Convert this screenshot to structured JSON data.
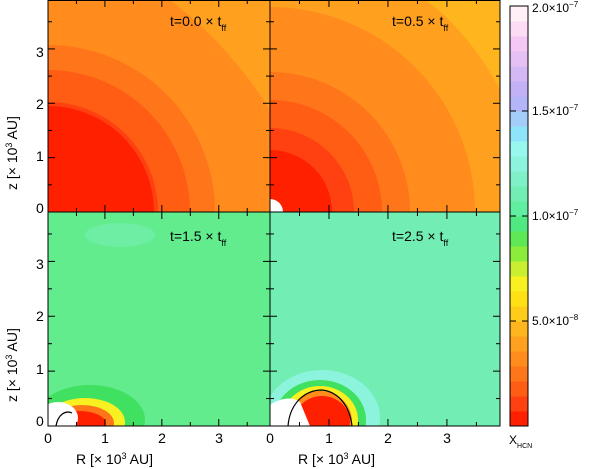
{
  "chart_data": {
    "type": "heatmap",
    "panels": [
      {
        "id": "t0",
        "label_text": "t=0.0 × t",
        "label_sub": "ff"
      },
      {
        "id": "t05",
        "label_text": "t=0.5 × t",
        "label_sub": "ff"
      },
      {
        "id": "t15",
        "label_text": "t=1.5 × t",
        "label_sub": "ff"
      },
      {
        "id": "t25",
        "label_text": "t=2.5 × t",
        "label_sub": "ff"
      }
    ],
    "x_axis": {
      "label_main": "R  [× 10",
      "label_sup": "3",
      "label_tail": " AU]",
      "ticks": [
        "0",
        "1",
        "2",
        "3"
      ],
      "range": [
        0,
        3.9
      ]
    },
    "y_axis": {
      "label_main": "z  [× 10",
      "label_sup": "3",
      "label_tail": " AU]",
      "ticks": [
        "0",
        "1",
        "2",
        "3"
      ],
      "range": [
        0,
        3.9
      ]
    },
    "colorbar": {
      "label_main": "X",
      "label_sub": "HCN",
      "range": [
        0,
        2e-07
      ],
      "tick_labels": [
        {
          "value": 5e-08,
          "text": "5.0×10",
          "exp": "−8"
        },
        {
          "value": 1e-07,
          "text": "1.0×10",
          "exp": "−7"
        },
        {
          "value": 1.5e-07,
          "text": "1.5×10",
          "exp": "−7"
        },
        {
          "value": 2e-07,
          "text": "2.0×10",
          "exp": "−7"
        }
      ]
    },
    "contour_colors": [
      "#ff2000",
      "#ff4010",
      "#ff5c14",
      "#ff761a",
      "#ff8c1c",
      "#ffa01e",
      "#ffb61e",
      "#ffcc1a",
      "#ffe014",
      "#f8f020",
      "#c8f030",
      "#8cec3c",
      "#5ee855",
      "#50e880",
      "#62eea0",
      "#72eeb4",
      "#80f0c8",
      "#8cf4dc",
      "#96f8ee",
      "#8ee4f8",
      "#a4ccf8",
      "#b4b4f8",
      "#c4b0f4",
      "#d4b8f4",
      "#e4c0f4",
      "#f4c8f4",
      "#fcdcf4",
      "#fff0f8"
    ]
  }
}
